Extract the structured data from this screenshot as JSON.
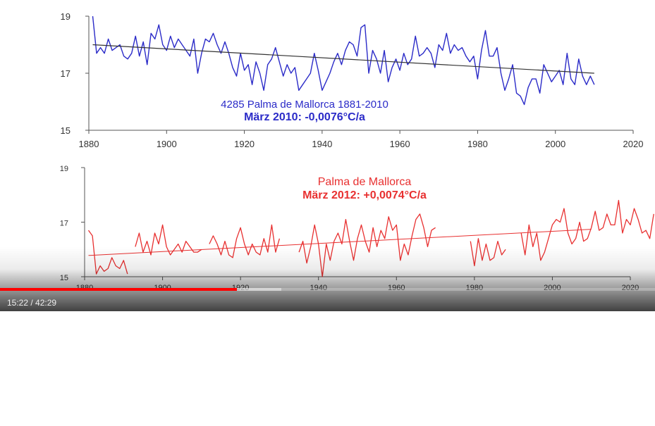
{
  "video": {
    "current_time": "15:22",
    "separator": " / ",
    "duration": "42:29",
    "progress_fraction": 0.3616,
    "buffer_fraction": 0.43,
    "progress_color": "#ff0000"
  },
  "chart_data": [
    {
      "type": "line",
      "title": "4285  Palma de Mallorca  1881-2010",
      "subtitle": "März 2010: -0,0076°C/a",
      "color": "#2b2bc8",
      "trend_color": "#333333",
      "xlim": [
        1880,
        2020
      ],
      "ylim": [
        15,
        19
      ],
      "x_ticks": [
        "1880",
        "1900",
        "1920",
        "1940",
        "1960",
        "1980",
        "2000",
        "2020"
      ],
      "y_ticks": [
        "15",
        "17",
        "19"
      ],
      "trend": {
        "x": [
          1881,
          2010
        ],
        "y": [
          18.0,
          17.0
        ]
      },
      "series": [
        {
          "x_start": 1881,
          "values": [
            19.0,
            17.7,
            17.9,
            17.7,
            18.2,
            17.8,
            17.9,
            18.0,
            17.6,
            17.5,
            17.7,
            18.3,
            17.6,
            18.1,
            17.3,
            18.4,
            18.2,
            18.7,
            18.0,
            17.8,
            18.3,
            17.9,
            18.2,
            18.0,
            17.8,
            17.6,
            18.2,
            17.0,
            17.7,
            18.2,
            18.1,
            18.4,
            18.0,
            17.7,
            18.1,
            17.7,
            17.2,
            16.9,
            17.7,
            17.1,
            17.3,
            16.6,
            17.4,
            17.0,
            16.4,
            17.3,
            17.5,
            17.9,
            17.4,
            16.9,
            17.3,
            17.0,
            17.2,
            16.4,
            16.6,
            16.8,
            17.0,
            17.7,
            17.1,
            16.4,
            16.7,
            17.0,
            17.4,
            17.7,
            17.3,
            17.8,
            18.1,
            18.0,
            17.6,
            18.6,
            18.7,
            17.0,
            17.8,
            17.5,
            17.0,
            17.8,
            16.7,
            17.2,
            17.5,
            17.1,
            17.7,
            17.3,
            17.5,
            18.3,
            17.6,
            17.7,
            17.9,
            17.7,
            17.2,
            18.0,
            17.8,
            18.4,
            17.7,
            18.0,
            17.8,
            17.9,
            17.6,
            17.4,
            17.6,
            16.8,
            17.8,
            18.5,
            17.6,
            17.6,
            17.9,
            17.0,
            16.4,
            16.8,
            17.3,
            16.3,
            16.2,
            15.9,
            16.5,
            16.8,
            16.8,
            16.3,
            17.3,
            17.0,
            16.7,
            16.9,
            17.1,
            16.6,
            17.7,
            16.8,
            16.6,
            17.5,
            16.9,
            16.6,
            16.9,
            16.6
          ]
        }
      ]
    },
    {
      "type": "line",
      "title": "Palma de Mallorca",
      "subtitle": "März 2012: +0,0074°C/a",
      "color": "#e83030",
      "trend_color": "#e83030",
      "xlim": [
        1880,
        2020
      ],
      "ylim": [
        15,
        19
      ],
      "x_ticks": [
        "1880",
        "1900",
        "1920",
        "1940",
        "1960",
        "1980",
        "2000",
        "2020"
      ],
      "y_ticks": [
        "15",
        "17",
        "19"
      ],
      "trend": {
        "x": [
          1881,
          2010
        ],
        "y": [
          15.78,
          16.74
        ]
      },
      "series": [
        {
          "x_start": 1881,
          "values": [
            16.7,
            16.5,
            15.1,
            15.4,
            15.2,
            15.3,
            15.7,
            15.4,
            15.3,
            15.6,
            15.1,
            null,
            16.1,
            16.6,
            15.9,
            16.3,
            15.8,
            16.6,
            16.2,
            16.9,
            16.1,
            15.8,
            16.0,
            16.2,
            15.9,
            16.3,
            16.1,
            15.9,
            15.9,
            16.0,
            null,
            16.2,
            16.5,
            16.2,
            15.8,
            16.3,
            15.8,
            15.7,
            16.4,
            16.8,
            16.2,
            15.8,
            16.2,
            15.9,
            15.8,
            16.4,
            15.9,
            16.9,
            15.9,
            16.4,
            null,
            null,
            null,
            null,
            15.9,
            16.3,
            15.5,
            16.1,
            16.9,
            16.2,
            15.0,
            16.2,
            15.6,
            16.3,
            16.6,
            16.2,
            17.1,
            16.3,
            15.6,
            16.4,
            16.9,
            16.3,
            15.9,
            16.8,
            16.1,
            16.7,
            16.4,
            17.2,
            16.7,
            16.9,
            15.6,
            16.2,
            15.8,
            16.5,
            17.1,
            17.3,
            16.8,
            16.1,
            16.7,
            16.8,
            null,
            null,
            null,
            null,
            null,
            null,
            null,
            null,
            16.3,
            15.4,
            16.4,
            15.6,
            16.2,
            15.6,
            15.7,
            16.3,
            15.8,
            16.0,
            null,
            null,
            null,
            16.6,
            15.8,
            16.9,
            16.1,
            16.6,
            15.6,
            15.9,
            16.4,
            16.9,
            17.1,
            17.0,
            17.5,
            16.6,
            16.2,
            16.4,
            17.0,
            16.3,
            16.4,
            16.8,
            17.4,
            16.7,
            16.8,
            17.3,
            16.9,
            16.9,
            17.8,
            16.6,
            17.1,
            16.9,
            17.5,
            17.1,
            16.6,
            16.7,
            16.4,
            17.3
          ]
        }
      ]
    }
  ]
}
